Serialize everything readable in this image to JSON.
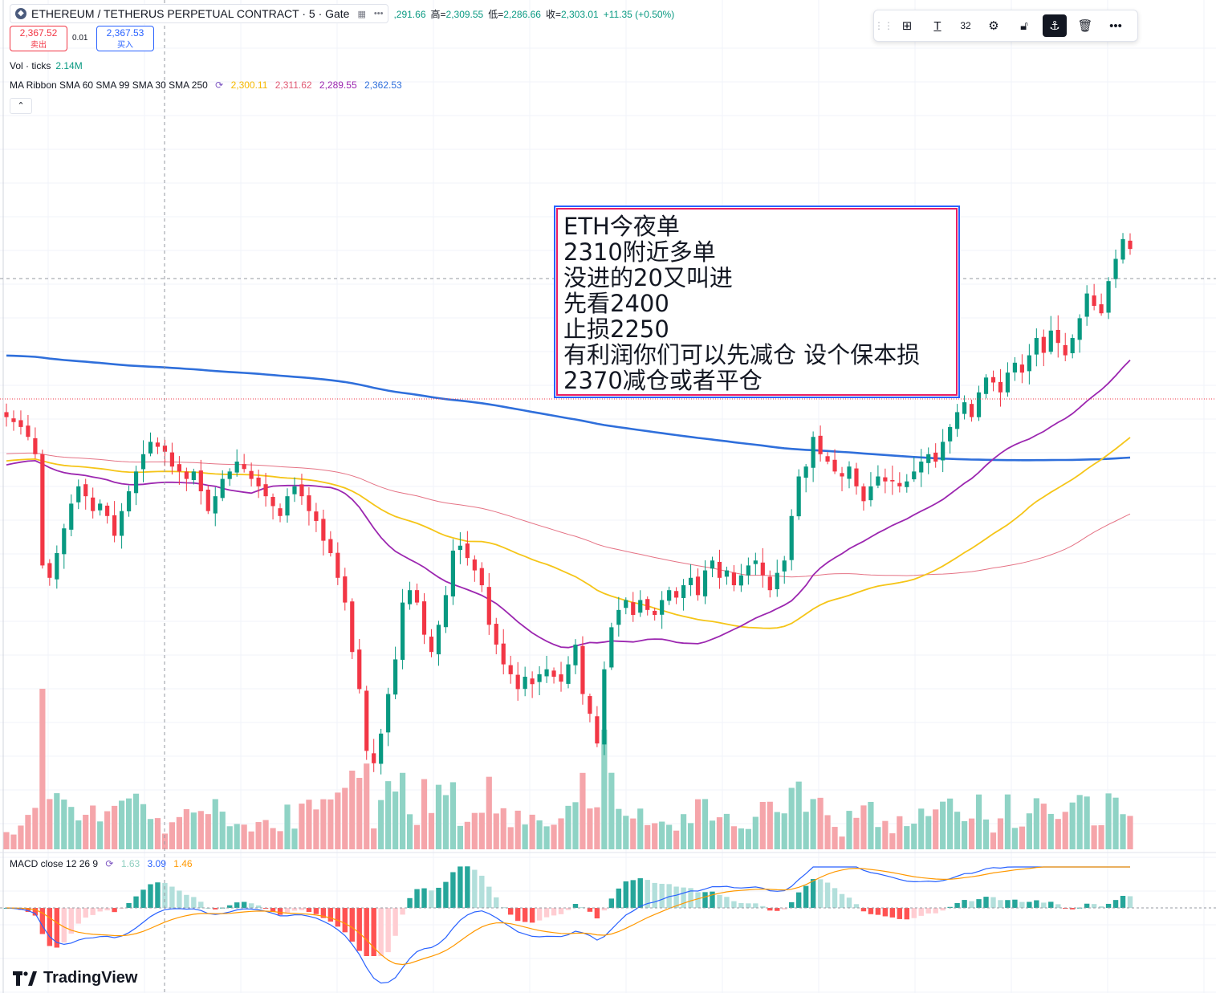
{
  "header": {
    "symbol": "ETHEREUM / TETHERUS PERPETUAL CONTRACT · 5 · Gate",
    "open_partial": ",291.66",
    "high_label": "高=",
    "high": "2,309.55",
    "low_label": "低=",
    "low": "2,286.66",
    "close_label": "收=",
    "close": "2,303.01",
    "change": "+11.35 (+0.50%)"
  },
  "trade": {
    "sell_price": "2,367.52",
    "sell_label": "卖出",
    "spread": "0.01",
    "buy_price": "2,367.53",
    "buy_label": "买入"
  },
  "volume_legend": {
    "label": "Vol · ticks",
    "value": "2.14M"
  },
  "ma_legend": {
    "label": "MA Ribbon SMA 60 SMA 99 SMA 30 SMA 250",
    "values": [
      "2,300.11",
      "2,311.62",
      "2,289.55",
      "2,362.53"
    ]
  },
  "macd_legend": {
    "label": "MACD close 12 26 9",
    "values": [
      "1.63",
      "3.09",
      "1.46"
    ]
  },
  "toolbar": {
    "text_size": "32"
  },
  "note": {
    "lines": [
      "ETH今夜单",
      "2310附近多单",
      "没进的20又叫进",
      "先看2400",
      "止损2250",
      "有利润你们可以先减仓 设个保本损",
      "2370减仓或者平仓"
    ]
  },
  "branding": {
    "name": "TradingView"
  },
  "colors": {
    "up": "#089981",
    "down": "#f23645",
    "sma30": "#9c27b0",
    "sma60": "#f5c518",
    "sma99": "#e57385",
    "sma250": "#2f6fdb",
    "macd": "#2962ff",
    "signal": "#ff9800"
  },
  "chart_data": {
    "type": "candlestick",
    "timeframe_minutes": 5,
    "price_range": [
      2190,
      2440
    ],
    "note": "approximate closes per candle, read from the chart",
    "closes": [
      2320,
      2318,
      2316,
      2312,
      2305,
      2260,
      2255,
      2265,
      2275,
      2285,
      2292,
      2288,
      2282,
      2285,
      2280,
      2272,
      2282,
      2290,
      2298,
      2305,
      2310,
      2308,
      2306,
      2300,
      2298,
      2295,
      2298,
      2290,
      2282,
      2288,
      2295,
      2298,
      2302,
      2299,
      2295,
      2292,
      2288,
      2284,
      2280,
      2288,
      2292,
      2288,
      2282,
      2278,
      2270,
      2265,
      2255,
      2245,
      2225,
      2210,
      2185,
      2180,
      2192,
      2208,
      2222,
      2245,
      2250,
      2245,
      2232,
      2225,
      2236,
      2248,
      2266,
      2268,
      2263,
      2258,
      2252,
      2236,
      2228,
      2220,
      2216,
      2210,
      2215,
      2212,
      2216,
      2218,
      2215,
      2213,
      2220,
      2228,
      2208,
      2200,
      2188,
      2218,
      2235,
      2242,
      2246,
      2240,
      2246,
      2242,
      2240,
      2246,
      2250,
      2247,
      2252,
      2255,
      2248,
      2258,
      2262,
      2255,
      2258,
      2252,
      2256,
      2260,
      2262,
      2256,
      2250,
      2257,
      2262,
      2280,
      2296,
      2300,
      2312,
      2305,
      2302,
      2298,
      2296,
      2300,
      2292,
      2286,
      2292,
      2296,
      2294,
      2294,
      2292,
      2294,
      2298,
      2302,
      2305,
      2302,
      2310,
      2316,
      2322,
      2326,
      2320,
      2330,
      2336,
      2334,
      2330,
      2338,
      2342,
      2338,
      2345,
      2352,
      2346,
      2355,
      2350,
      2345,
      2352,
      2360,
      2370,
      2365,
      2362,
      2375,
      2384,
      2392,
      2388
    ]
  }
}
